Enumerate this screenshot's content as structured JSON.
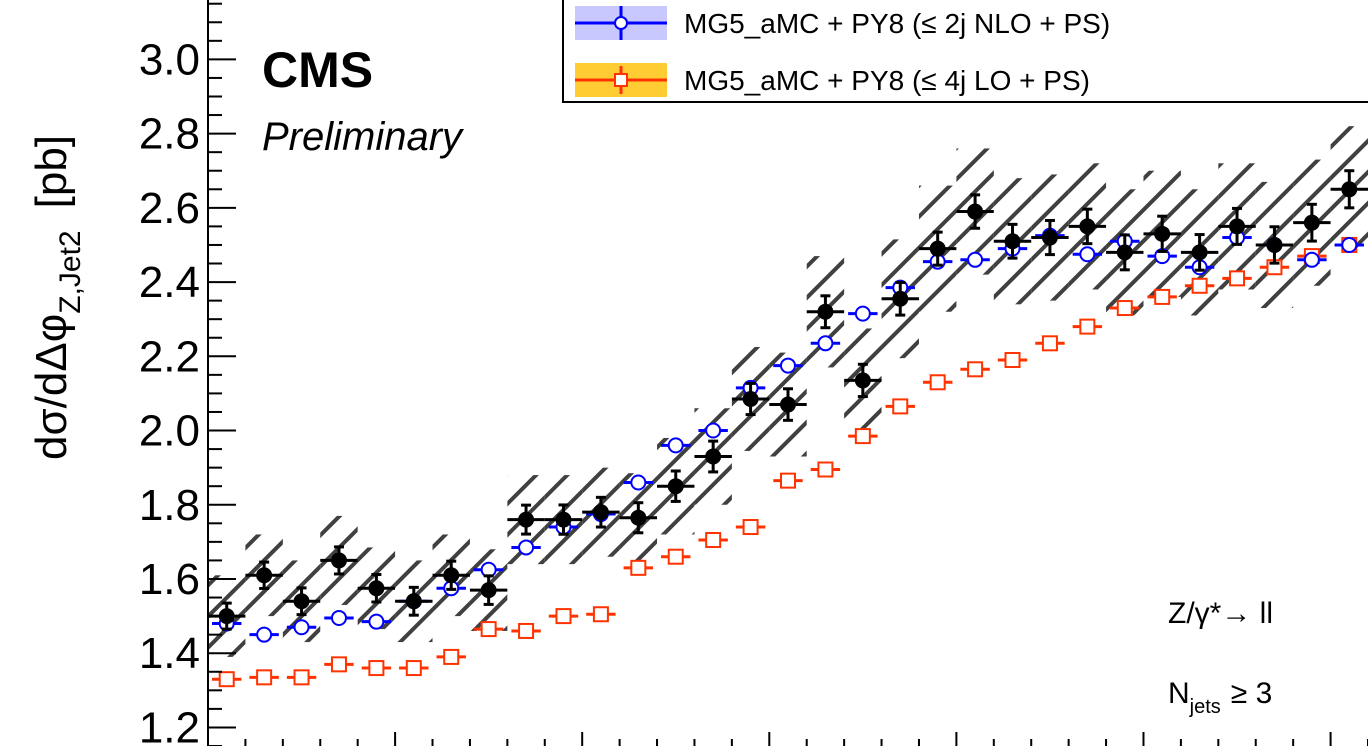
{
  "chart_data": {
    "type": "scatter",
    "ylabel": "dσ/dΔφ",
    "ylabel_sub": "Z,Jet2",
    "ylabel_unit": "[pb]",
    "ylim": [
      1.15,
      3.16
    ],
    "yticks": [
      "1.2",
      "1.4",
      "1.6",
      "1.8",
      "2.0",
      "2.2",
      "2.4",
      "2.6",
      "2.8",
      "3.0"
    ],
    "x": [
      0.05,
      0.15,
      0.25,
      0.35,
      0.45,
      0.55,
      0.65,
      0.75,
      0.85,
      0.95,
      1.05,
      1.15,
      1.25,
      1.35,
      1.45,
      1.55,
      1.65,
      1.75,
      1.85,
      1.95,
      2.05,
      2.15,
      2.25,
      2.35,
      2.45,
      2.55,
      2.65,
      2.75,
      2.85,
      2.95,
      3.05
    ],
    "xlim": [
      0.0,
      3.1
    ],
    "bin_half_width": 0.05,
    "series": [
      {
        "name": "",
        "values": [
          1.5,
          1.61,
          1.54,
          1.65,
          1.575,
          1.54,
          1.61,
          1.57,
          1.76,
          1.76,
          1.78,
          1.765,
          1.85,
          1.93,
          2.085,
          2.07,
          2.32,
          2.135,
          2.355,
          2.49,
          2.59,
          2.51,
          2.52,
          2.55,
          2.48,
          2.53,
          2.48,
          2.55,
          2.5,
          2.56,
          2.65
        ],
        "uncertainty": [
          0.11,
          0.11,
          0.11,
          0.12,
          0.11,
          0.11,
          0.11,
          0.11,
          0.12,
          0.12,
          0.12,
          0.12,
          0.13,
          0.13,
          0.14,
          0.14,
          0.15,
          0.14,
          0.16,
          0.17,
          0.17,
          0.17,
          0.17,
          0.17,
          0.17,
          0.17,
          0.17,
          0.17,
          0.17,
          0.17,
          0.17
        ],
        "color": "#000000"
      },
      {
        "name": "MG5_aMC + PY8 (≤ 2j NLO + PS)",
        "values": [
          1.48,
          1.45,
          1.47,
          1.495,
          1.485,
          1.54,
          1.575,
          1.625,
          1.685,
          1.74,
          1.775,
          1.86,
          1.96,
          2.0,
          2.115,
          2.175,
          2.235,
          2.315,
          2.385,
          2.455,
          2.46,
          2.49,
          2.525,
          2.475,
          2.51,
          2.47,
          2.44,
          2.52,
          2.5,
          2.46,
          2.5
        ],
        "color": "#0000ff"
      },
      {
        "name": "MG5_aMC + PY8 (≤ 4j LO + PS)",
        "values": [
          1.33,
          1.335,
          1.335,
          1.37,
          1.36,
          1.36,
          1.39,
          1.465,
          1.46,
          1.5,
          1.505,
          1.63,
          1.66,
          1.705,
          1.74,
          1.865,
          1.895,
          1.985,
          2.065,
          2.13,
          2.165,
          2.19,
          2.235,
          2.28,
          2.33,
          2.36,
          2.39,
          2.41,
          2.44,
          2.47,
          2.5
        ],
        "color": "#ff3300"
      }
    ],
    "legend_position": "top-right"
  },
  "labels": {
    "cms": "CMS",
    "preliminary": "Preliminary",
    "process_prefix": "Z/γ*→ ll",
    "njets_main": "N",
    "njets_sub": "jets",
    "njets_suffix": "≥ 3"
  },
  "colors": {
    "nlo_band": "#c8c8ff",
    "lo_band": "#ffcc33",
    "hatch": "#404040"
  }
}
